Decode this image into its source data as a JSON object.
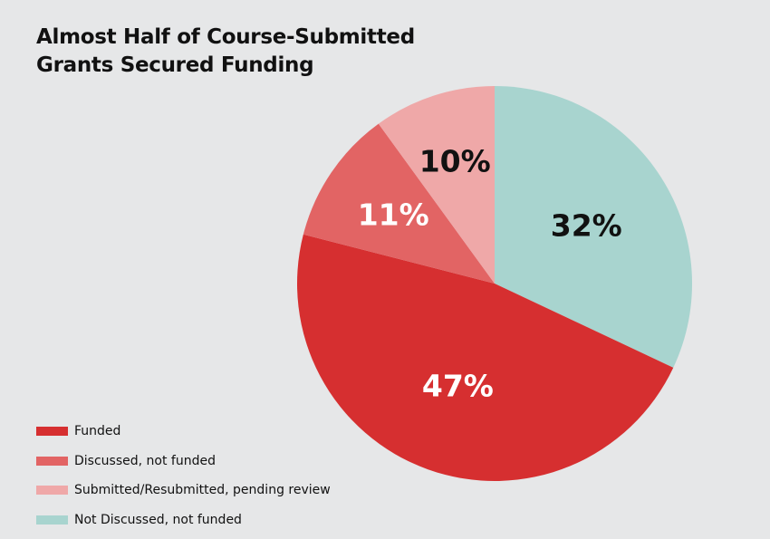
{
  "chart_data": {
    "type": "pie",
    "title": "Almost Half of Course-Submitted Grants Secured Funding",
    "start_angle": "top, clockwise",
    "slices": [
      {
        "label": "Not Discussed, not funded",
        "value": 32,
        "display": "32%",
        "color": "#a8d4cf",
        "text_color": "#111111"
      },
      {
        "label": "Funded",
        "value": 47,
        "display": "47%",
        "color": "#d62f30",
        "text_color": "#ffffff"
      },
      {
        "label": "Discussed, not funded",
        "value": 11,
        "display": "11%",
        "color": "#e26464",
        "text_color": "#ffffff"
      },
      {
        "label": "Submitted/Resubmitted, pending review",
        "value": 10,
        "display": "10%",
        "color": "#efa8a8",
        "text_color": "#111111"
      }
    ],
    "legend": {
      "placement": "bottom-left",
      "order": [
        "Funded",
        "Discussed, not funded",
        "Submitted/Resubmitted, pending review",
        "Not Discussed, not funded"
      ]
    }
  },
  "background": "#e6e7e8"
}
